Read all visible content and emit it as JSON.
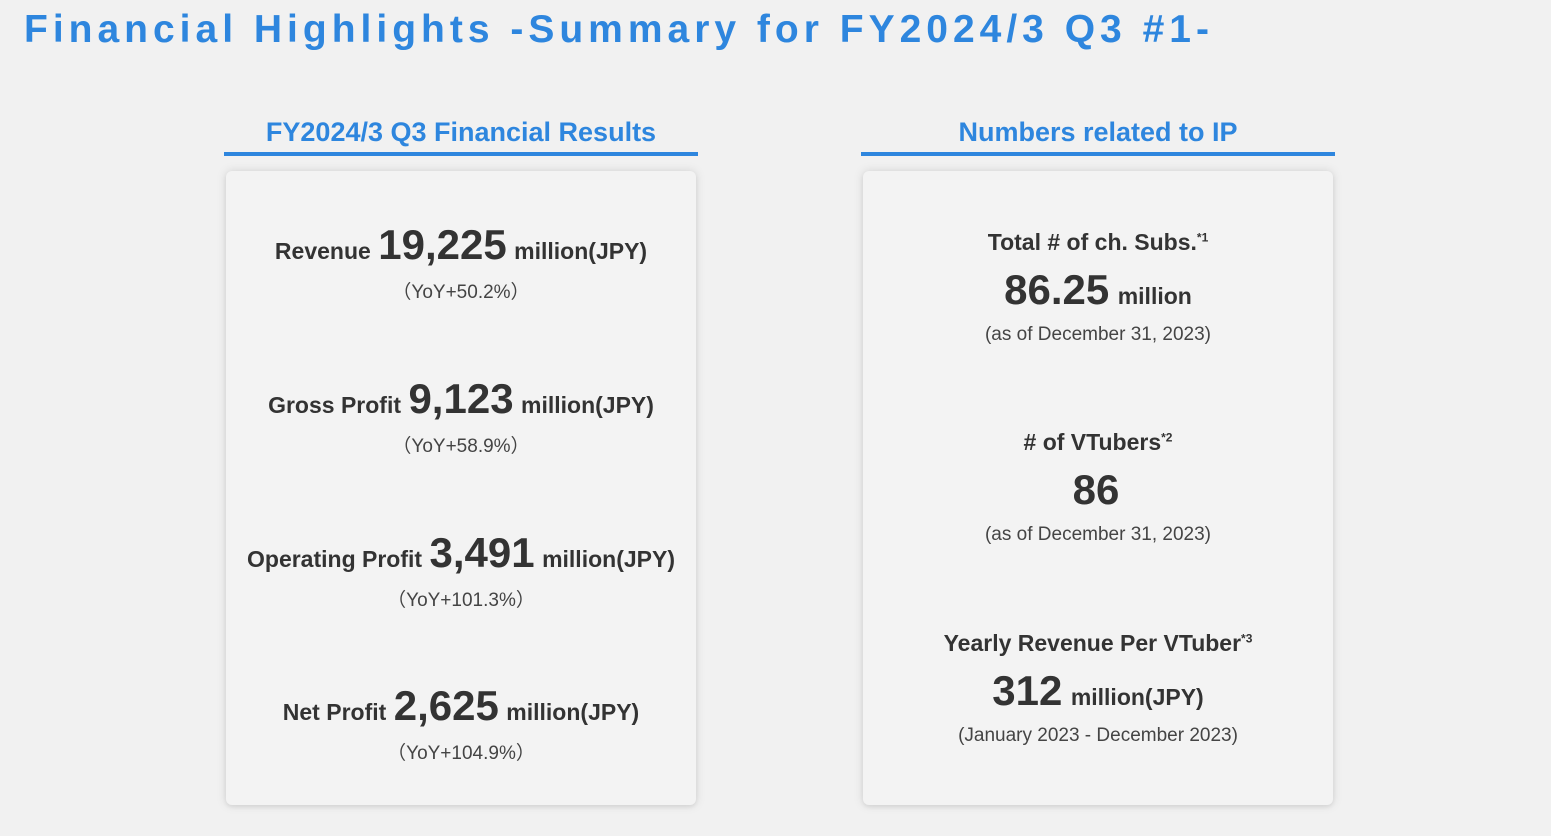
{
  "title": "Financial Highlights -Summary for FY2024/3 Q3 #1-",
  "financial": {
    "header": "FY2024/3 Q3 Financial Results",
    "metrics": [
      {
        "label": "Revenue",
        "value": "19,225",
        "unit": "million(JPY)",
        "yoy": "（YoY+50.2%）"
      },
      {
        "label": "Gross Profit",
        "value": "9,123",
        "unit": "million(JPY)",
        "yoy": "（YoY+58.9%）"
      },
      {
        "label": "Operating Profit",
        "value": "3,491",
        "unit": "million(JPY)",
        "yoy": "（YoY+101.3%）"
      },
      {
        "label": "Net Profit",
        "value": "2,625",
        "unit": "million(JPY)",
        "yoy": "（YoY+104.9%）"
      }
    ]
  },
  "ip": {
    "header": "Numbers related to IP",
    "items": [
      {
        "label": "Total # of ch. Subs.",
        "note": "*1",
        "value": "86.25",
        "unit": "million",
        "sub": "(as of December 31, 2023)"
      },
      {
        "label": "# of VTubers",
        "note": "*2",
        "value": "86",
        "unit": "",
        "sub": "(as of December 31, 2023)"
      },
      {
        "label": "Yearly Revenue Per VTuber",
        "note": "*3",
        "value": "312",
        "unit": "million(JPY)",
        "sub": "(January 2023 - December 2023)"
      }
    ]
  }
}
